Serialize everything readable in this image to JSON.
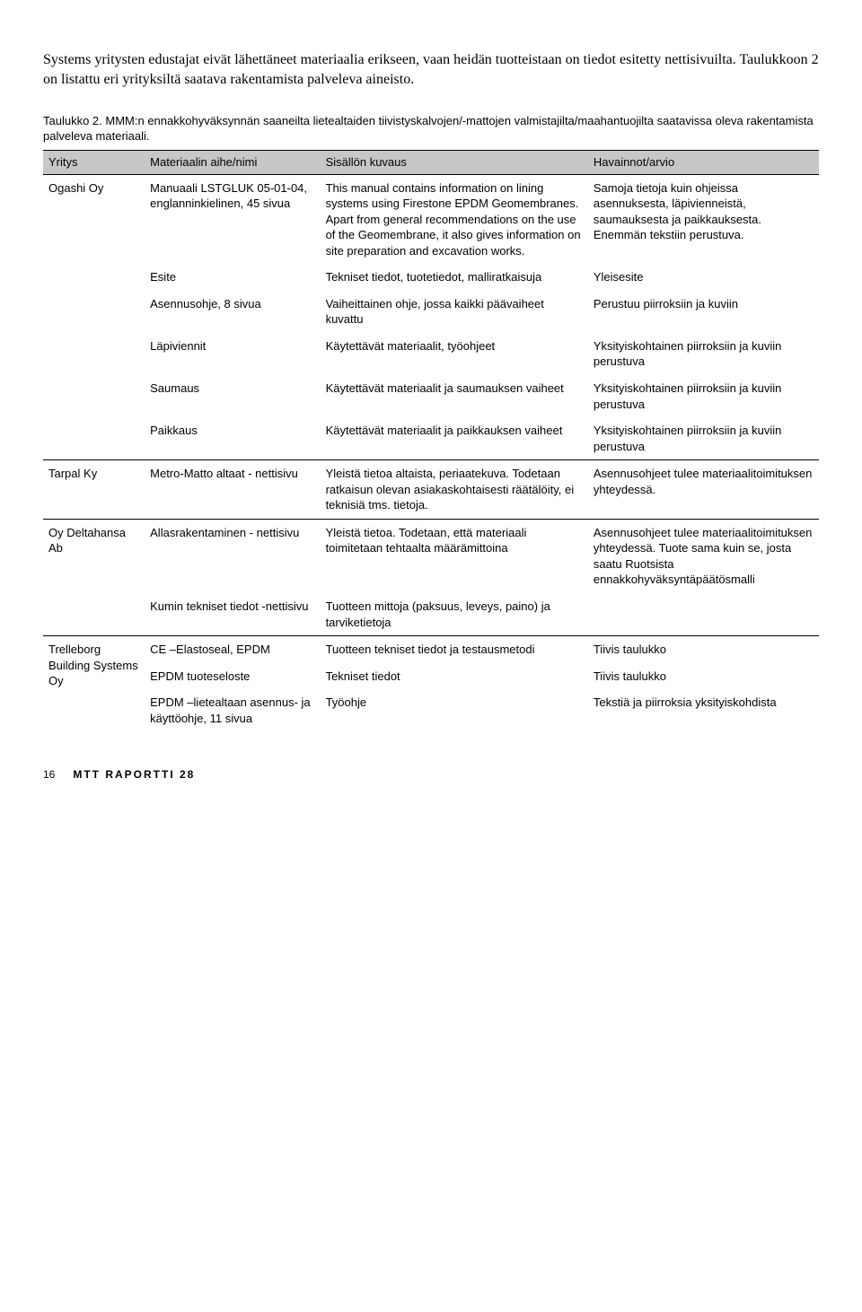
{
  "intro": "Systems yritysten edustajat eivät lähettäneet materiaalia erikseen, vaan heidän tuotteistaan on tiedot esitetty nettisivuilta. Taulukkoon 2 on listattu eri yrityksiltä saatava rakentamista palveleva aineisto.",
  "table_caption": "Taulukko 2. MMM:n ennakkohyväksynnän saaneilta lietealtaiden tiivistyskalvojen/-mattojen valmistajilta/maahantuojilta saatavissa oleva rakentamista palveleva materiaali.",
  "headers": {
    "c0": "Yritys",
    "c1": "Materiaalin aihe/nimi",
    "c2": "Sisällön kuvaus",
    "c3": "Havainnot/arvio"
  },
  "groups": [
    {
      "company": "Ogashi Oy",
      "rows": [
        {
          "material": "Manuaali LSTGLUK 05-01-04, englanninkielinen, 45 sivua",
          "desc": "This manual contains information on lining systems using Firestone EPDM Geomembranes. Apart from general recommendations on the use of the Geomembrane, it also gives information on site preparation and excavation works.",
          "notes": "Samoja tietoja kuin ohjeissa asennuksesta, läpivienneistä, saumauksesta ja paikkauksesta. Enemmän tekstiin perustuva."
        },
        {
          "material": "Esite",
          "desc": "Tekniset tiedot, tuotetiedot, malliratkaisuja",
          "notes": "Yleisesite"
        },
        {
          "material": "Asennusohje, 8 sivua",
          "desc": "Vaiheittainen ohje, jossa kaikki päävaiheet kuvattu",
          "notes": "Perustuu piirroksiin ja kuviin"
        },
        {
          "material": "Läpiviennit",
          "desc": "Käytettävät materiaalit, työohjeet",
          "notes": "Yksityiskohtainen piirroksiin ja kuviin perustuva"
        },
        {
          "material": "Saumaus",
          "desc": "Käytettävät materiaalit ja saumauksen vaiheet",
          "notes": "Yksityiskohtainen piirroksiin ja kuviin perustuva"
        },
        {
          "material": "Paikkaus",
          "desc": "Käytettävät materiaalit ja paikkauksen vaiheet",
          "notes": "Yksityiskohtainen piirroksiin ja kuviin perustuva"
        }
      ]
    },
    {
      "company": "Tarpal Ky",
      "rows": [
        {
          "material": "Metro-Matto altaat - nettisivu",
          "desc": "Yleistä tietoa altaista, periaatekuva. Todetaan ratkaisun olevan asiakaskohtaisesti räätälöity, ei teknisiä tms. tietoja.",
          "notes": "Asennusohjeet tulee materiaalitoimituksen yhteydessä."
        }
      ]
    },
    {
      "company": "Oy Deltahansa Ab",
      "rows": [
        {
          "material": "Allasrakentaminen - nettisivu",
          "desc": "Yleistä tietoa. Todetaan, että materiaali toimitetaan tehtaalta määrämittoina",
          "notes": "Asennusohjeet tulee materiaalitoimituksen yhteydessä. Tuote sama kuin se, josta saatu Ruotsista ennakkohyväksyntäpäätösmalli"
        },
        {
          "material": "Kumin tekniset tiedot -nettisivu",
          "desc": "Tuotteen mittoja (paksuus, leveys, paino) ja tarviketietoja",
          "notes": ""
        }
      ]
    },
    {
      "company": "Trelleborg Building Systems Oy",
      "rows": [
        {
          "material": "CE –Elastoseal, EPDM",
          "desc": "Tuotteen tekniset tiedot ja testausmetodi",
          "notes": "Tiivis taulukko"
        },
        {
          "material": "EPDM tuoteseloste",
          "desc": "Tekniset tiedot",
          "notes": "Tiivis taulukko"
        },
        {
          "material": "EPDM –lietealtaan asennus- ja käyttöohje, 11 sivua",
          "desc": "Työohje",
          "notes": "Tekstiä ja piirroksia yksityiskohdista"
        }
      ]
    }
  ],
  "footer": {
    "page": "16",
    "brand": "MTT RAPORTTI 28"
  }
}
